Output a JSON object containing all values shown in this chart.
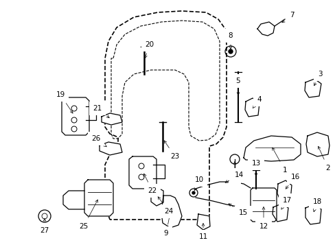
{
  "background_color": "#ffffff",
  "door_color": "#000000",
  "door_linewidth": 1.2,
  "part_linewidth": 0.9,
  "label_fontsize": 7.5,
  "arrow_lw": 0.5
}
